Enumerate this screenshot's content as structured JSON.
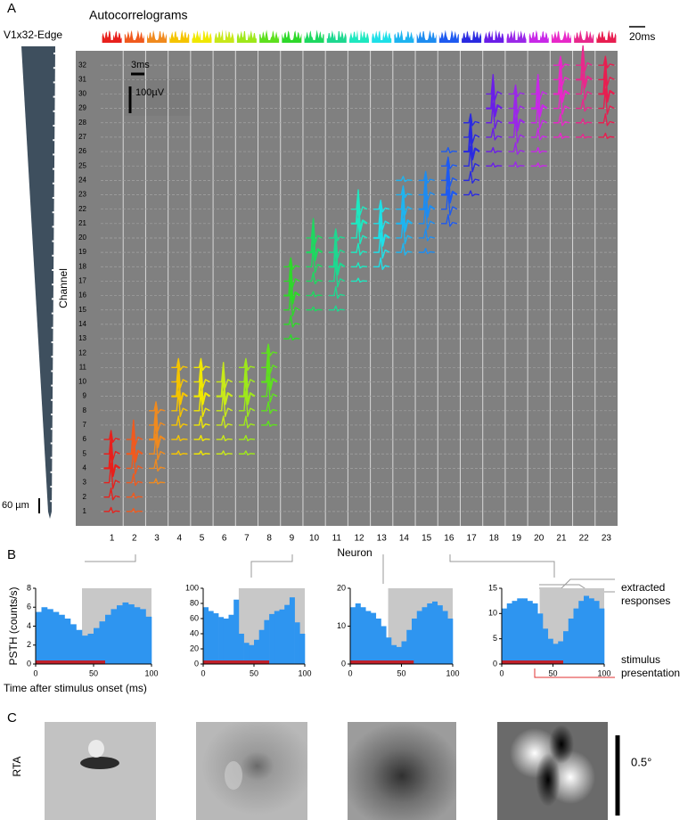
{
  "panel_labels": {
    "a": "A",
    "b": "B",
    "c": "C"
  },
  "probe": {
    "name": "V1x32-Edge",
    "scale": "60 µm"
  },
  "autocorrelograms": {
    "title": "Autocorrelograms",
    "scale": "20ms"
  },
  "scale_bars": {
    "time": "3ms",
    "voltage": "100µV"
  },
  "chart_data": [
    {
      "type": "waveforms",
      "x_label": "Neuron",
      "y_label": "Channel",
      "categories": [
        1,
        2,
        3,
        4,
        5,
        6,
        7,
        8,
        9,
        10,
        11,
        12,
        13,
        14,
        15,
        16,
        17,
        18,
        19,
        20,
        21,
        22,
        23
      ],
      "ylim": [
        0,
        33
      ],
      "yticks": [
        1,
        2,
        3,
        4,
        5,
        6,
        7,
        8,
        9,
        10,
        11,
        12,
        13,
        14,
        15,
        16,
        17,
        18,
        19,
        20,
        21,
        22,
        23,
        24,
        25,
        26,
        27,
        28,
        29,
        30,
        31,
        32
      ],
      "grid": true,
      "neurons": [
        {
          "color": "#e8201c",
          "channels": [
            1,
            6
          ],
          "peak": 4
        },
        {
          "color": "#f05a1e",
          "channels": [
            1,
            6
          ],
          "peak": 5
        },
        {
          "color": "#f08a1e",
          "channels": [
            3,
            8
          ],
          "peak": 6
        },
        {
          "color": "#f5c400",
          "channels": [
            5,
            11
          ],
          "peak": 9
        },
        {
          "color": "#f0e800",
          "channels": [
            5,
            11
          ],
          "peak": 9
        },
        {
          "color": "#c8e81a",
          "channels": [
            5,
            10
          ],
          "peak": 9
        },
        {
          "color": "#9ee81a",
          "channels": [
            5,
            11
          ],
          "peak": 9
        },
        {
          "color": "#5ee01e",
          "channels": [
            7,
            12
          ],
          "peak": 10
        },
        {
          "color": "#2ed82a",
          "channels": [
            13,
            18
          ],
          "peak": 16
        },
        {
          "color": "#1ed860",
          "channels": [
            15,
            20
          ],
          "peak": 19
        },
        {
          "color": "#1ed890",
          "channels": [
            15,
            20
          ],
          "peak": 18
        },
        {
          "color": "#1ee8c0",
          "channels": [
            17,
            22
          ],
          "peak": 21
        },
        {
          "color": "#1ee0e8",
          "channels": [
            18,
            22
          ],
          "peak": 20
        },
        {
          "color": "#1eb4f0",
          "channels": [
            19,
            24
          ],
          "peak": 21
        },
        {
          "color": "#1e8cf0",
          "channels": [
            19,
            24
          ],
          "peak": 22
        },
        {
          "color": "#1e5af0",
          "channels": [
            21,
            26
          ],
          "peak": 23
        },
        {
          "color": "#2a2ae0",
          "channels": [
            23,
            28
          ],
          "peak": 26
        },
        {
          "color": "#6a1ee8",
          "channels": [
            25,
            30
          ],
          "peak": 29
        },
        {
          "color": "#9a28e8",
          "channels": [
            25,
            30
          ],
          "peak": 28
        },
        {
          "color": "#c828e8",
          "channels": [
            25,
            30
          ],
          "peak": 29
        },
        {
          "color": "#e828c8",
          "channels": [
            27,
            32
          ],
          "peak": 30
        },
        {
          "color": "#e8288c",
          "channels": [
            27,
            32
          ],
          "peak": 31
        },
        {
          "color": "#e81e50",
          "channels": [
            27,
            32
          ],
          "peak": 30
        }
      ]
    },
    {
      "type": "histogram",
      "y_label": "PSTH (counts/s)",
      "x_label": "Time after stimulus onset (ms)",
      "bins": [
        0,
        5,
        10,
        15,
        20,
        25,
        30,
        35,
        40,
        45,
        50,
        55,
        60,
        65,
        70,
        75,
        80,
        85,
        90,
        95,
        100
      ],
      "values": [
        5.5,
        6,
        5.8,
        5.5,
        5.2,
        4.8,
        4.2,
        3.6,
        3.0,
        3.2,
        3.8,
        4.5,
        5.2,
        5.8,
        6.2,
        6.5,
        6.3,
        6.0,
        5.8,
        5.0
      ],
      "color": "#2e95f0",
      "xlim": [
        0,
        100
      ],
      "xticks": [
        0,
        50,
        100
      ],
      "ylim": [
        0,
        8
      ],
      "yticks": [
        0,
        2,
        4,
        6,
        8
      ],
      "response_window": [
        40,
        100
      ],
      "stimulus": [
        0,
        60
      ]
    },
    {
      "type": "histogram",
      "bins": [
        0,
        5,
        10,
        15,
        20,
        25,
        30,
        35,
        40,
        45,
        50,
        55,
        60,
        65,
        70,
        75,
        80,
        85,
        90,
        95,
        100
      ],
      "values": [
        75,
        70,
        67,
        62,
        60,
        65,
        85,
        40,
        28,
        25,
        32,
        45,
        58,
        66,
        70,
        72,
        78,
        88,
        55,
        40
      ],
      "color": "#2e95f0",
      "xlim": [
        0,
        100
      ],
      "xticks": [
        0,
        50,
        100
      ],
      "ylim": [
        0,
        100
      ],
      "yticks": [
        0,
        20,
        40,
        60,
        80,
        100
      ],
      "response_window": [
        35,
        100
      ],
      "stimulus": [
        0,
        65
      ]
    },
    {
      "type": "histogram",
      "bins": [
        0,
        5,
        10,
        15,
        20,
        25,
        30,
        35,
        40,
        45,
        50,
        55,
        60,
        65,
        70,
        75,
        80,
        85,
        90,
        95,
        100
      ],
      "values": [
        15,
        16,
        15,
        14,
        13.5,
        12,
        10,
        7,
        5,
        4.5,
        6,
        9,
        12,
        14,
        15,
        16,
        16.5,
        15.5,
        14,
        12
      ],
      "color": "#2e95f0",
      "xlim": [
        0,
        100
      ],
      "xticks": [
        0,
        50,
        100
      ],
      "ylim": [
        0,
        20
      ],
      "yticks": [
        0,
        10,
        20
      ],
      "response_window": [
        37,
        100
      ],
      "stimulus": [
        0,
        62
      ]
    },
    {
      "type": "histogram",
      "bins": [
        0,
        5,
        10,
        15,
        20,
        25,
        30,
        35,
        40,
        45,
        50,
        55,
        60,
        65,
        70,
        75,
        80,
        85,
        90,
        95,
        100
      ],
      "values": [
        11,
        12,
        12.5,
        13,
        13,
        12.5,
        12,
        10,
        7,
        5,
        4,
        4.5,
        6.5,
        9,
        11,
        12.5,
        13.5,
        13,
        12.5,
        11
      ],
      "color": "#2e95f0",
      "xlim": [
        0,
        100
      ],
      "xticks": [
        0,
        50,
        100
      ],
      "ylim": [
        0,
        15
      ],
      "yticks": [
        0,
        5,
        10,
        15
      ],
      "response_window": [
        37,
        100
      ],
      "stimulus": [
        0,
        60
      ]
    }
  ],
  "annotations": {
    "responses": "extracted responses",
    "stimulus": "stimulus presentation"
  },
  "rta": {
    "label": "RTA",
    "scale": "0.5°"
  }
}
